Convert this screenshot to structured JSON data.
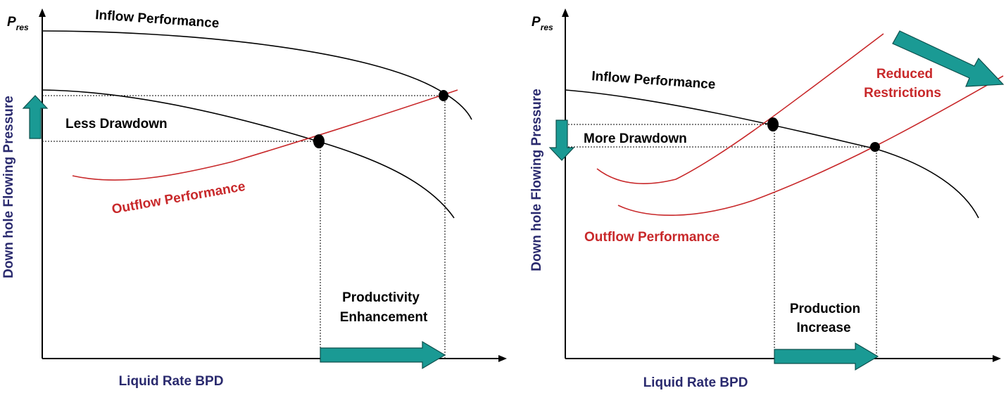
{
  "colors": {
    "inflow": "#000000",
    "outflow": "#c8282a",
    "arrow_fill": "#1a9a94",
    "arrow_stroke": "#0d4f4c",
    "axis_label": "#2a2a6e"
  },
  "left_panel": {
    "pres_main": "P",
    "pres_sub": "res",
    "y_axis_label": "Down hole Flowing Pressure",
    "x_axis_label": "Liquid Rate BPD",
    "inflow_label": "Inflow Performance",
    "outflow_label": "Outflow Performance",
    "drawdown_label": "Less Drawdown",
    "enhancement_line1": "Productivity",
    "enhancement_line2": "Enhancement"
  },
  "right_panel": {
    "pres_main": "P",
    "pres_sub": "res",
    "y_axis_label": "Down hole Flowing Pressure",
    "x_axis_label": "Liquid Rate BPD",
    "inflow_label": "Inflow Performance",
    "outflow_label": "Outflow Performance",
    "drawdown_label": "More Drawdown",
    "restrictions_line1": "Reduced",
    "restrictions_line2": "Restrictions",
    "increase_line1": "Production",
    "increase_line2": "Increase"
  }
}
